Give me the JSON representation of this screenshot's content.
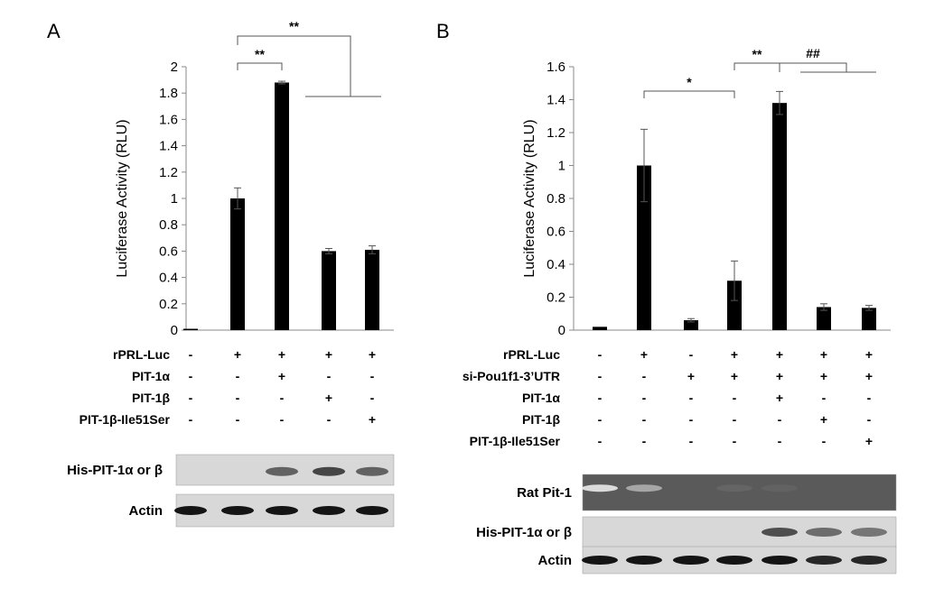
{
  "chart_data": [
    {
      "panel": "A",
      "type": "bar",
      "title": "",
      "xlabel": "",
      "ylabel": "Luciferase Activity (RLU)",
      "ylim": [
        0,
        2
      ],
      "yticks": [
        "0",
        "0.2",
        "0.4",
        "0.6",
        "0.8",
        "1",
        "1.2",
        "1.4",
        "1.6",
        "1.8",
        "2"
      ],
      "values": [
        0.01,
        1.0,
        1.88,
        0.6,
        0.61
      ],
      "errors": [
        0.0,
        0.08,
        0.01,
        0.02,
        0.03
      ],
      "conditions": [
        {
          "label": "rPRL-Luc",
          "symbols": [
            "-",
            "+",
            "+",
            "+",
            "+"
          ]
        },
        {
          "label": "PIT-1α",
          "symbols": [
            "-",
            "-",
            "+",
            "-",
            "-"
          ]
        },
        {
          "label": "PIT-1β",
          "symbols": [
            "-",
            "-",
            "-",
            "+",
            "-"
          ]
        },
        {
          "label": "PIT-1β-Ile51Ser",
          "symbols": [
            "-",
            "-",
            "-",
            "-",
            "+"
          ]
        }
      ],
      "significance": [
        {
          "label": "**",
          "from": 1,
          "to": 2
        },
        {
          "label": "**",
          "from": 1,
          "to": [
            3,
            4
          ]
        }
      ],
      "blots": [
        {
          "label": "His-PIT-1α or β",
          "bands": [
            0,
            0,
            0.6,
            0.75,
            0.6
          ]
        },
        {
          "label": "Actin",
          "bands": [
            1,
            1,
            1,
            1,
            1
          ]
        }
      ]
    },
    {
      "panel": "B",
      "type": "bar",
      "title": "",
      "xlabel": "",
      "ylabel": "Luciferase Activity (RLU)",
      "ylim": [
        0,
        1.6
      ],
      "yticks": [
        "0",
        "0.2",
        "0.4",
        "0.6",
        "0.8",
        "1",
        "1.2",
        "1.4",
        "1.6"
      ],
      "values": [
        0.02,
        1.0,
        0.06,
        0.3,
        1.38,
        0.14,
        0.135
      ],
      "errors": [
        0.0,
        0.22,
        0.01,
        0.12,
        0.07,
        0.02,
        0.015
      ],
      "conditions": [
        {
          "label": "rPRL-Luc",
          "symbols": [
            "-",
            "+",
            "-",
            "+",
            "+",
            "+",
            "+"
          ]
        },
        {
          "label": "si-Pou1f1-3’UTR",
          "symbols": [
            "-",
            "-",
            "+",
            "+",
            "+",
            "+",
            "+"
          ]
        },
        {
          "label": "PIT-1α",
          "symbols": [
            "-",
            "-",
            "-",
            "-",
            "+",
            "-",
            "-"
          ]
        },
        {
          "label": "PIT-1β",
          "symbols": [
            "-",
            "-",
            "-",
            "-",
            "-",
            "+",
            "-"
          ]
        },
        {
          "label": "PIT-1β-Ile51Ser",
          "symbols": [
            "-",
            "-",
            "-",
            "-",
            "-",
            "-",
            "+"
          ]
        }
      ],
      "significance": [
        {
          "label": "*",
          "from": 1,
          "to": 3
        },
        {
          "label": "**",
          "from": 3,
          "to": 4
        },
        {
          "label": "##",
          "from": 4,
          "to": [
            5,
            6
          ]
        }
      ],
      "blots": [
        {
          "label": "Rat Pit-1",
          "bands": [
            0.85,
            0.5,
            0,
            0.08,
            0.06,
            0,
            0
          ]
        },
        {
          "label": "His-PIT-1α or β",
          "bands": [
            0,
            0,
            0,
            0,
            0.7,
            0.55,
            0.5
          ]
        },
        {
          "label": "Actin",
          "bands": [
            1,
            1,
            1,
            1,
            1,
            0.9,
            0.9
          ]
        }
      ]
    }
  ]
}
